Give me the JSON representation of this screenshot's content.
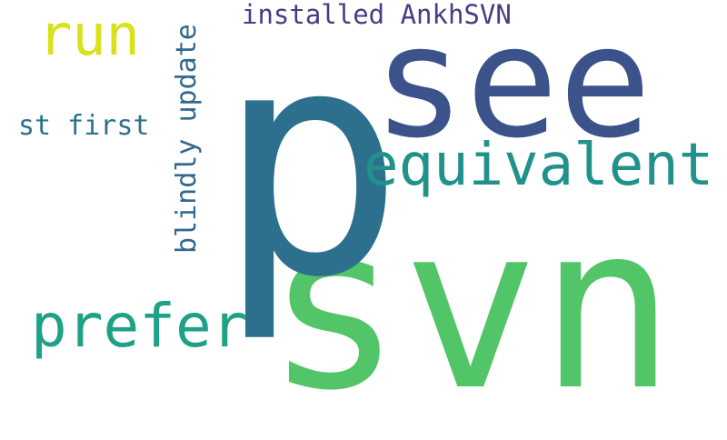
{
  "words": [
    {
      "id": "svn",
      "text": "svn",
      "color": "#52c569"
    },
    {
      "id": "p",
      "text": "p",
      "color": "#2d708e"
    },
    {
      "id": "see",
      "text": "see",
      "color": "#3b528b"
    },
    {
      "id": "equivalent",
      "text": "equivalent",
      "color": "#21918c"
    },
    {
      "id": "prefer",
      "text": "prefer",
      "color": "#1fa187"
    },
    {
      "id": "run",
      "text": "run",
      "color": "#d8e219"
    },
    {
      "id": "installed-ankhsvn",
      "text": "installed AnkhSVN",
      "color": "#433e85"
    },
    {
      "id": "blindly-update",
      "text": "blindly update",
      "color": "#31688e"
    },
    {
      "id": "st-first",
      "text": "st first",
      "color": "#2c728e"
    }
  ]
}
